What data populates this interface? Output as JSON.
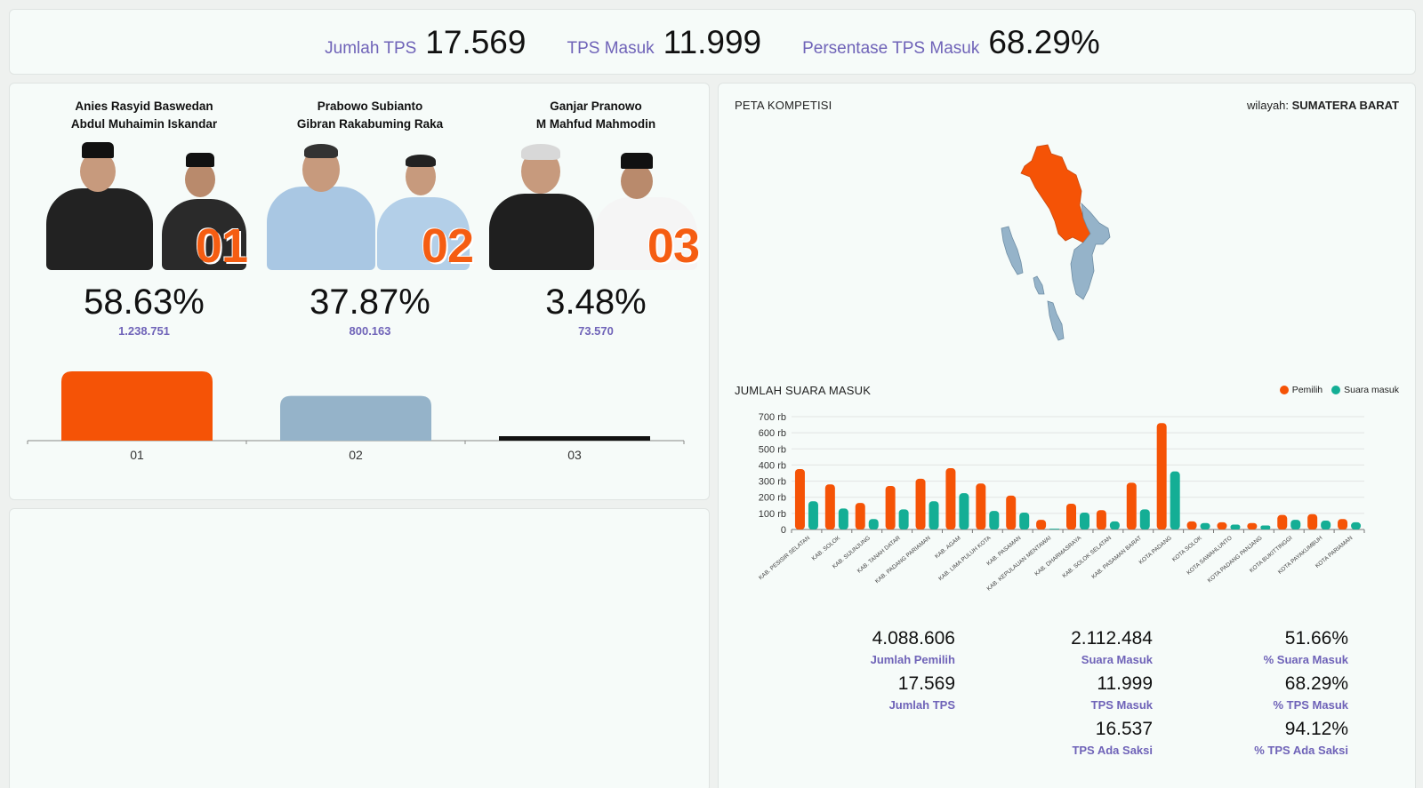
{
  "header": {
    "stats": [
      {
        "label": "Jumlah TPS",
        "value": "17.569"
      },
      {
        "label": "TPS Masuk",
        "value": "11.999"
      },
      {
        "label": "Persentase TPS Masuk",
        "value": "68.29%"
      }
    ]
  },
  "candidates": [
    {
      "name1": "Anies Rasyid Baswedan",
      "name2": "Abdul Muhaimin Iskandar",
      "number": "01",
      "percent": "58.63%",
      "votes": "1.238.751",
      "color": "#f55306"
    },
    {
      "name1": "Prabowo Subianto",
      "name2": "Gibran Rakabuming Raka",
      "number": "02",
      "percent": "37.87%",
      "votes": "800.163",
      "color": "#95b3c9"
    },
    {
      "name1": "Ganjar Pranowo",
      "name2": "M Mahfud Mahmodin",
      "number": "03",
      "percent": "3.48%",
      "votes": "73.570",
      "color": "#111111"
    }
  ],
  "map": {
    "title": "PETA KOMPETISI",
    "region_label": "wilayah:",
    "region_name": "SUMATERA BARAT",
    "colors": {
      "winner": "#f55306",
      "other": "#95b3c9"
    }
  },
  "chart_data": [
    {
      "type": "bar",
      "categories": [
        "01",
        "02",
        "03"
      ],
      "values": [
        1238751,
        800163,
        73570
      ],
      "colors": [
        "#f55306",
        "#95b3c9",
        "#111111"
      ],
      "title": "",
      "xlabel": "",
      "ylabel": ""
    },
    {
      "type": "bar",
      "title": "JUMLAH SUARA MASUK",
      "legend_position": "top-right",
      "categories": [
        "KAB. PESISIR SELATAN",
        "KAB. SOLOK",
        "KAB. SIJUNJUNG",
        "KAB. TANAH DATAR",
        "KAB. PADANG PARIAMAN",
        "KAB. AGAM",
        "KAB. LIMA PULUH KOTA",
        "KAB. PASAMAN",
        "KAB. KEPULAUAN MENTAWAI",
        "KAB. DHARMASRAYA",
        "KAB. SOLOK SELATAN",
        "KAB. PASAMAN BARAT",
        "KOTA PADANG",
        "KOTA SOLOK",
        "KOTA SAWAHLUNTO",
        "KOTA PADANG PANJANG",
        "KOTA BUKITTINGGI",
        "KOTA PAYAKUMBUH",
        "KOTA PARIAMAN"
      ],
      "series": [
        {
          "name": "Pemilih",
          "color": "#f55306",
          "values": [
            375000,
            280000,
            165000,
            270000,
            315000,
            380000,
            285000,
            210000,
            60000,
            160000,
            120000,
            290000,
            660000,
            50000,
            45000,
            40000,
            90000,
            95000,
            65000
          ]
        },
        {
          "name": "Suara masuk",
          "color": "#14ae95",
          "values": [
            175000,
            130000,
            65000,
            125000,
            175000,
            225000,
            115000,
            105000,
            5000,
            105000,
            50000,
            125000,
            360000,
            40000,
            30000,
            25000,
            60000,
            55000,
            45000
          ]
        }
      ],
      "y_ticks": [
        "0",
        "100 rb",
        "200 rb",
        "300 rb",
        "400 rb",
        "500 rb",
        "600 rb",
        "700 rb"
      ],
      "ylim": [
        0,
        700000
      ],
      "grid": true
    }
  ],
  "summary": [
    {
      "value": "4.088.606",
      "label": "Jumlah Pemilih"
    },
    {
      "value": "2.112.484",
      "label": "Suara Masuk"
    },
    {
      "value": "51.66%",
      "label": "% Suara Masuk"
    },
    {
      "value": "17.569",
      "label": "Jumlah TPS"
    },
    {
      "value": "11.999",
      "label": "TPS Masuk"
    },
    {
      "value": "68.29%",
      "label": "% TPS Masuk"
    },
    {
      "value": "16.537",
      "label": "TPS Ada Saksi"
    },
    {
      "value": "94.12%",
      "label": "% TPS Ada Saksi"
    }
  ]
}
